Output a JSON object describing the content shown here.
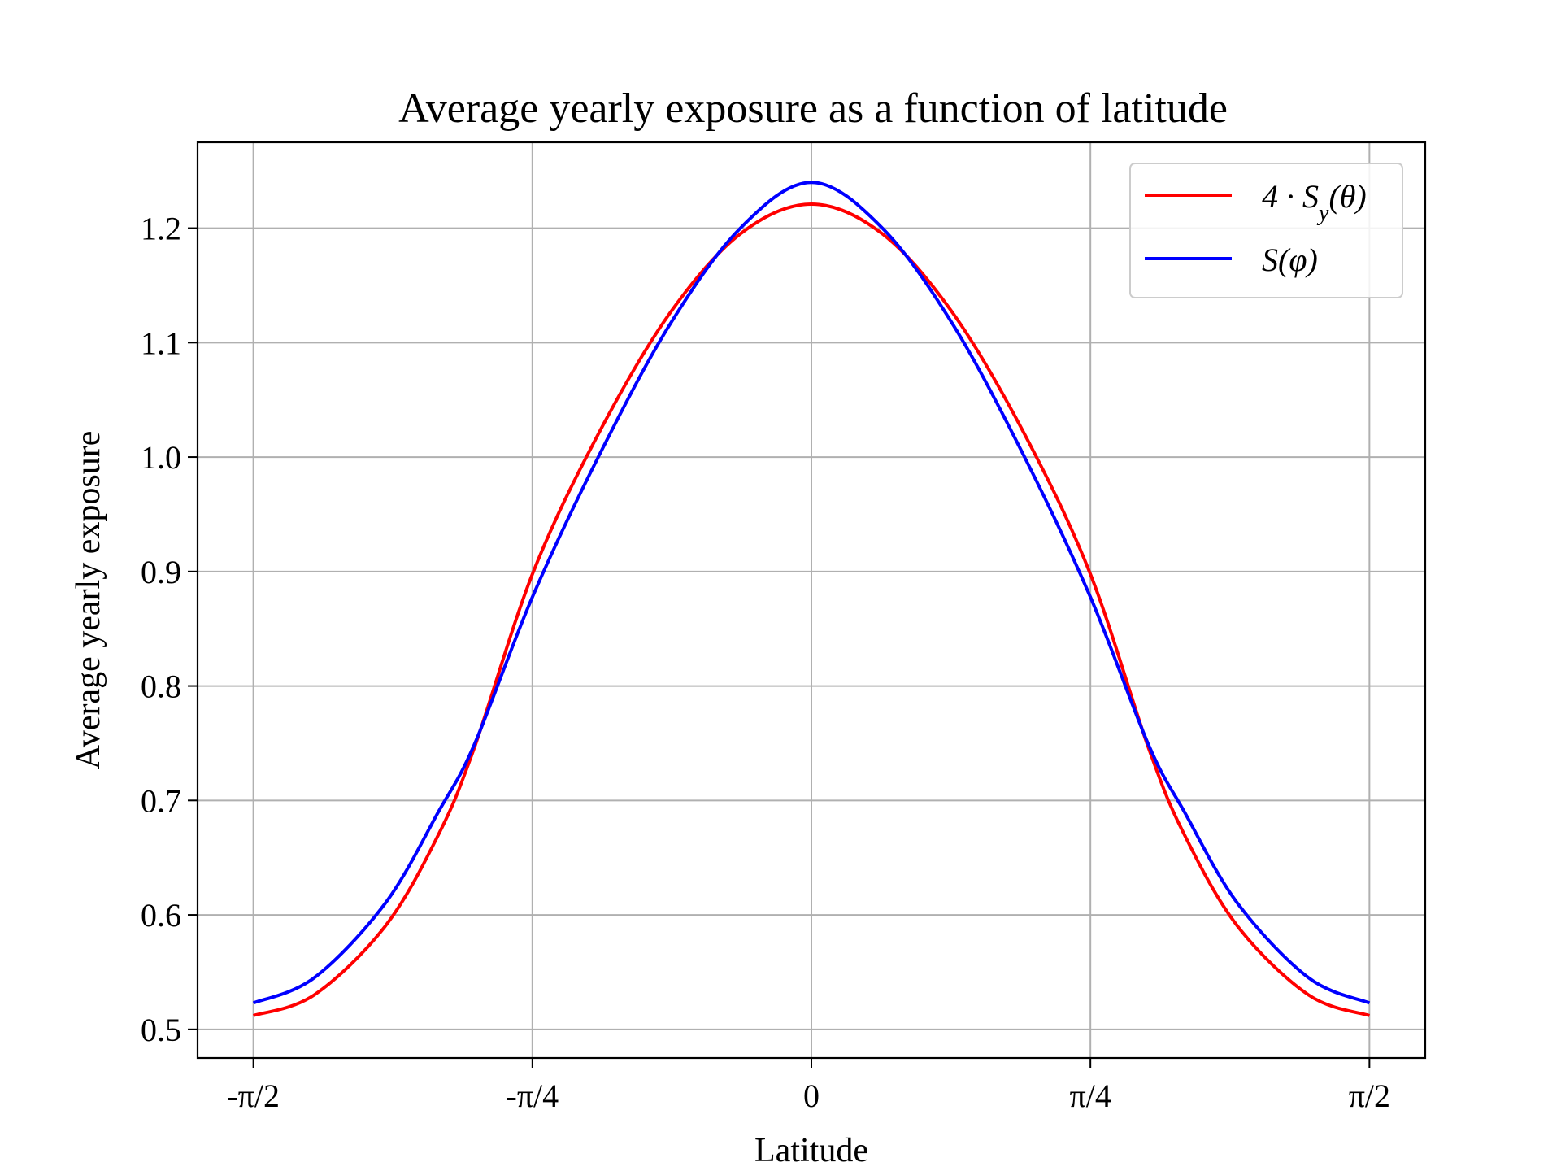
{
  "chart_data": {
    "type": "line",
    "title": "Average yearly exposure as a function of latitude",
    "xlabel": "Latitude",
    "ylabel": "Average yearly exposure",
    "xlim": [
      -1.7279,
      1.7279
    ],
    "ylim": [
      0.475,
      1.275
    ],
    "grid": true,
    "legend_position": "top-right",
    "x_ticks": [
      {
        "value": -1.5708,
        "label": "-π/2"
      },
      {
        "value": -0.7854,
        "label": "-π/4"
      },
      {
        "value": 0,
        "label": "0"
      },
      {
        "value": 0.7854,
        "label": "π/4"
      },
      {
        "value": 1.5708,
        "label": "π/2"
      }
    ],
    "y_ticks": [
      {
        "value": 0.5,
        "label": "0.5"
      },
      {
        "value": 0.6,
        "label": "0.6"
      },
      {
        "value": 0.7,
        "label": "0.7"
      },
      {
        "value": 0.8,
        "label": "0.8"
      },
      {
        "value": 0.9,
        "label": "0.9"
      },
      {
        "value": 1.0,
        "label": "1.0"
      },
      {
        "value": 1.1,
        "label": "1.1"
      },
      {
        "value": 1.2,
        "label": "1.2"
      }
    ],
    "series": [
      {
        "name": "4 · S_y(θ)",
        "color": "#ff0000",
        "x": [
          -1.5708,
          -1.4,
          -1.2,
          -1.05,
          -0.95,
          -0.785,
          -0.6,
          -0.4,
          -0.2,
          0,
          0.2,
          0.4,
          0.6,
          0.785,
          0.95,
          1.05,
          1.2,
          1.4,
          1.5708
        ],
        "y": [
          0.512,
          0.53,
          0.59,
          0.67,
          0.745,
          0.898,
          1.02,
          1.125,
          1.195,
          1.221,
          1.195,
          1.125,
          1.02,
          0.898,
          0.745,
          0.67,
          0.59,
          0.53,
          0.512
        ]
      },
      {
        "name": "S(φ)",
        "color": "#0000ff",
        "x": [
          -1.5708,
          -1.4,
          -1.2,
          -1.05,
          -0.95,
          -0.785,
          -0.6,
          -0.4,
          -0.2,
          0,
          0.2,
          0.4,
          0.6,
          0.785,
          0.95,
          1.05,
          1.2,
          1.4,
          1.5708
        ],
        "y": [
          0.523,
          0.545,
          0.61,
          0.69,
          0.748,
          0.878,
          1.0,
          1.115,
          1.2,
          1.24,
          1.2,
          1.115,
          1.0,
          0.878,
          0.748,
          0.69,
          0.61,
          0.545,
          0.523
        ]
      }
    ]
  }
}
